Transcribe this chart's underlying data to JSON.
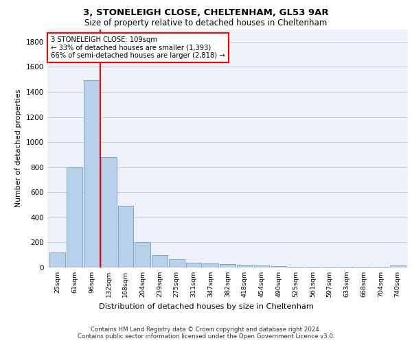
{
  "title1": "3, STONELEIGH CLOSE, CHELTENHAM, GL53 9AR",
  "title2": "Size of property relative to detached houses in Cheltenham",
  "xlabel": "Distribution of detached houses by size in Cheltenham",
  "ylabel": "Number of detached properties",
  "footer1": "Contains HM Land Registry data © Crown copyright and database right 2024.",
  "footer2": "Contains public sector information licensed under the Open Government Licence v3.0.",
  "categories": [
    "25sqm",
    "61sqm",
    "96sqm",
    "132sqm",
    "168sqm",
    "204sqm",
    "239sqm",
    "275sqm",
    "311sqm",
    "347sqm",
    "382sqm",
    "418sqm",
    "454sqm",
    "490sqm",
    "525sqm",
    "561sqm",
    "597sqm",
    "633sqm",
    "668sqm",
    "704sqm",
    "740sqm"
  ],
  "values": [
    120,
    800,
    1490,
    880,
    490,
    205,
    100,
    65,
    40,
    35,
    30,
    20,
    15,
    10,
    5,
    5,
    5,
    5,
    5,
    5,
    15
  ],
  "bar_color": "#b8d0ea",
  "bar_edge_color": "#6a9fc0",
  "vline_x": 2.5,
  "annotation_text": "3 STONELEIGH CLOSE: 109sqm\n← 33% of detached houses are smaller (1,393)\n66% of semi-detached houses are larger (2,818) →",
  "annotation_box_color": "white",
  "annotation_border_color": "red",
  "vline_color": "red",
  "ylim": [
    0,
    1900
  ],
  "yticks": [
    0,
    200,
    400,
    600,
    800,
    1000,
    1200,
    1400,
    1600,
    1800
  ],
  "grid_color": "#c8c8c8",
  "bg_color": "#eef2f8"
}
